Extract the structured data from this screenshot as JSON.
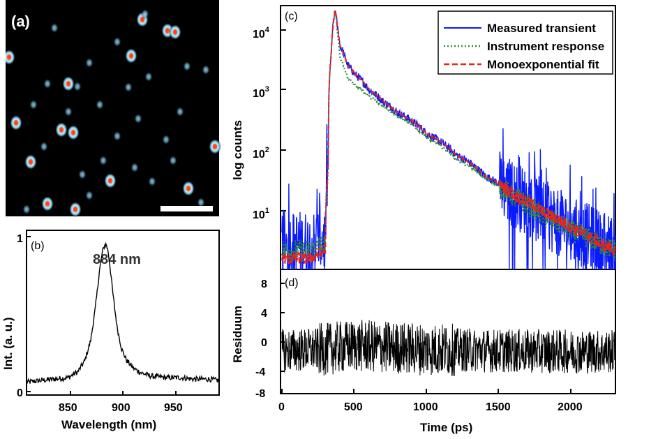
{
  "panels": {
    "a": {
      "tag": "(a)",
      "scale_bar": true,
      "colors": {
        "background": "#000000",
        "spot_outer": "#7fd3ff",
        "spot_core": "#ff2a1a"
      }
    },
    "b": {
      "tag": "(b)",
      "peak_label": "884 nm",
      "xlabel": "Wavelength (nm)",
      "ylabel": "Int. (a. u.)",
      "x_ticks": [
        "850",
        "900",
        "950"
      ],
      "y_ticks": [
        "0",
        "1"
      ]
    },
    "c": {
      "tag": "(c)",
      "ylabel": "log counts",
      "y_ticks": [
        {
          "base": "10",
          "exp": "1"
        },
        {
          "base": "10",
          "exp": "2"
        },
        {
          "base": "10",
          "exp": "3"
        },
        {
          "base": "10",
          "exp": "4"
        }
      ],
      "legend": [
        {
          "label": "Measured transient",
          "color": "#0a1aff",
          "style": "solid"
        },
        {
          "label": "Instrument response",
          "color": "#2e8b2e",
          "style": "dotted"
        },
        {
          "label": "Monoexponential fit",
          "color": "#e8231d",
          "style": "dashed"
        }
      ]
    },
    "d": {
      "tag": "(d)",
      "ylabel": "Residuum",
      "y_ticks": [
        "8",
        "4",
        "0",
        "-4",
        "-8"
      ],
      "x_ticks": [
        "0",
        "500",
        "1000",
        "1500",
        "2000"
      ],
      "xlabel": "Time (ps)"
    }
  },
  "chart_data": [
    {
      "type": "line",
      "panel": "b",
      "xlabel": "Wavelength (nm)",
      "ylabel": "Int. (a. u.)",
      "xlim": [
        802,
        1000
      ],
      "ylim": [
        0,
        1
      ],
      "series": [
        {
          "x": [
            802,
            815,
            830,
            845,
            855,
            862,
            868,
            873,
            877,
            880,
            882,
            884,
            886,
            888,
            891,
            895,
            900,
            905,
            912,
            920,
            930,
            945,
            960,
            975,
            990,
            1000
          ],
          "values": [
            0.06,
            0.07,
            0.08,
            0.09,
            0.13,
            0.2,
            0.33,
            0.55,
            0.78,
            0.9,
            0.94,
            0.95,
            0.9,
            0.8,
            0.62,
            0.42,
            0.27,
            0.2,
            0.15,
            0.12,
            0.1,
            0.09,
            0.09,
            0.08,
            0.08,
            0.07
          ]
        }
      ]
    },
    {
      "type": "line",
      "panel": "c",
      "xlabel": "Time (ps)",
      "ylabel": "log counts",
      "xlim": [
        0,
        2300
      ],
      "ylim": [
        2,
        30000
      ],
      "yscale": "log",
      "series": [
        {
          "name": "Measured transient",
          "x": [
            0,
            100,
            200,
            300,
            320,
            340,
            360,
            370,
            380,
            400,
            450,
            500,
            600,
            700,
            800,
            1000,
            1200,
            1400,
            1600,
            1800,
            2000,
            2200,
            2300
          ],
          "values": [
            5,
            5,
            5,
            6,
            80,
            5000,
            20000,
            25000,
            15000,
            7000,
            3500,
            2500,
            1400,
            900,
            600,
            280,
            130,
            60,
            30,
            15,
            8,
            5,
            4
          ]
        },
        {
          "name": "Instrument response",
          "x": [
            0,
            100,
            200,
            300,
            320,
            340,
            360,
            370,
            380,
            400,
            450,
            500,
            600,
            700,
            800,
            1000,
            1200,
            1400,
            1600,
            1800,
            2000,
            2200,
            2300
          ],
          "values": [
            4,
            4,
            4,
            5,
            70,
            5000,
            20000,
            25000,
            12000,
            4500,
            2200,
            1700,
            1100,
            750,
            520,
            240,
            110,
            55,
            28,
            14,
            8,
            5,
            4
          ]
        },
        {
          "name": "Monoexponential fit",
          "x": [
            0,
            100,
            200,
            300,
            320,
            340,
            360,
            370,
            380,
            400,
            450,
            500,
            600,
            700,
            800,
            1000,
            1200,
            1400,
            1600,
            1800,
            2000,
            2200,
            2300
          ],
          "values": [
            3,
            3,
            3,
            4,
            80,
            5000,
            20000,
            25000,
            15000,
            7000,
            3500,
            2500,
            1400,
            900,
            600,
            280,
            130,
            60,
            30,
            16,
            9,
            5,
            4
          ]
        }
      ]
    },
    {
      "type": "line",
      "panel": "d",
      "xlabel": "Time (ps)",
      "ylabel": "Residuum",
      "xlim": [
        0,
        2300
      ],
      "ylim": [
        -8,
        9
      ],
      "series": [
        {
          "x": [
            0,
            300,
            500,
            1000,
            1500,
            2000,
            2300
          ],
          "values": [
            -1.2,
            -1.0,
            -0.5,
            -1.0,
            -1.2,
            -1.3,
            -1.3
          ]
        }
      ]
    }
  ]
}
